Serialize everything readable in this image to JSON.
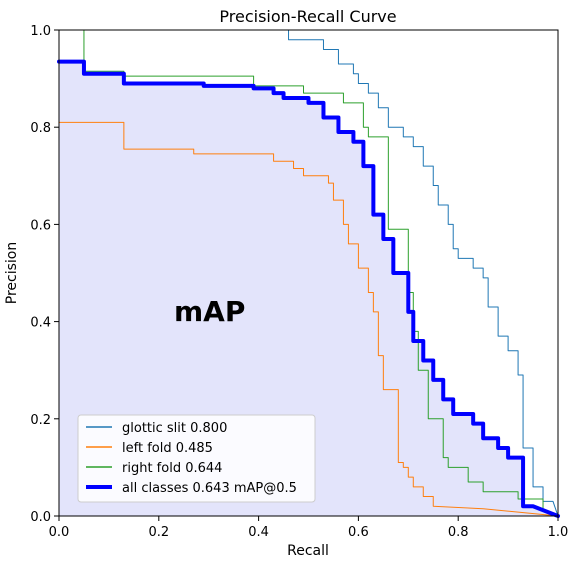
{
  "chart_data": {
    "type": "line",
    "title": "Precision-Recall Curve",
    "xlabel": "Recall",
    "ylabel": "Precision",
    "xlim": [
      0.0,
      1.0
    ],
    "ylim": [
      0.0,
      1.0
    ],
    "xticks": [
      "0.0",
      "0.2",
      "0.4",
      "0.6",
      "0.8",
      "1.0"
    ],
    "yticks": [
      "0.0",
      "0.2",
      "0.4",
      "0.6",
      "0.8",
      "1.0"
    ],
    "grid": false,
    "legend_position": "lower-left",
    "annotation": "mAP",
    "fill_under": "all classes 0.643 mAP@0.5",
    "series": [
      {
        "name": "glottic slit 0.800",
        "color": "#1f77b4",
        "linewidth": 1,
        "points": [
          [
            0.46,
            1.0
          ],
          [
            0.46,
            0.98
          ],
          [
            0.53,
            0.98
          ],
          [
            0.53,
            0.96
          ],
          [
            0.56,
            0.96
          ],
          [
            0.56,
            0.93
          ],
          [
            0.59,
            0.93
          ],
          [
            0.59,
            0.91
          ],
          [
            0.6,
            0.91
          ],
          [
            0.6,
            0.89
          ],
          [
            0.62,
            0.89
          ],
          [
            0.62,
            0.87
          ],
          [
            0.64,
            0.87
          ],
          [
            0.64,
            0.84
          ],
          [
            0.66,
            0.84
          ],
          [
            0.66,
            0.8
          ],
          [
            0.69,
            0.8
          ],
          [
            0.69,
            0.78
          ],
          [
            0.71,
            0.78
          ],
          [
            0.71,
            0.76
          ],
          [
            0.73,
            0.76
          ],
          [
            0.73,
            0.72
          ],
          [
            0.75,
            0.72
          ],
          [
            0.75,
            0.68
          ],
          [
            0.76,
            0.68
          ],
          [
            0.76,
            0.64
          ],
          [
            0.78,
            0.64
          ],
          [
            0.78,
            0.6
          ],
          [
            0.79,
            0.6
          ],
          [
            0.79,
            0.55
          ],
          [
            0.8,
            0.55
          ],
          [
            0.8,
            0.53
          ],
          [
            0.83,
            0.53
          ],
          [
            0.83,
            0.51
          ],
          [
            0.85,
            0.51
          ],
          [
            0.85,
            0.49
          ],
          [
            0.86,
            0.49
          ],
          [
            0.86,
            0.43
          ],
          [
            0.88,
            0.43
          ],
          [
            0.88,
            0.37
          ],
          [
            0.9,
            0.37
          ],
          [
            0.9,
            0.34
          ],
          [
            0.92,
            0.34
          ],
          [
            0.92,
            0.29
          ],
          [
            0.93,
            0.29
          ],
          [
            0.93,
            0.14
          ],
          [
            0.95,
            0.14
          ],
          [
            0.95,
            0.06
          ],
          [
            0.97,
            0.06
          ],
          [
            0.97,
            0.03
          ],
          [
            0.99,
            0.03
          ],
          [
            1.0,
            0.0
          ]
        ]
      },
      {
        "name": "left fold 0.485",
        "color": "#ff7f0e",
        "linewidth": 1,
        "points": [
          [
            0.0,
            0.81
          ],
          [
            0.13,
            0.81
          ],
          [
            0.13,
            0.755
          ],
          [
            0.27,
            0.755
          ],
          [
            0.27,
            0.745
          ],
          [
            0.43,
            0.745
          ],
          [
            0.43,
            0.73
          ],
          [
            0.47,
            0.73
          ],
          [
            0.47,
            0.715
          ],
          [
            0.49,
            0.715
          ],
          [
            0.49,
            0.7
          ],
          [
            0.54,
            0.7
          ],
          [
            0.54,
            0.685
          ],
          [
            0.55,
            0.685
          ],
          [
            0.55,
            0.65
          ],
          [
            0.57,
            0.65
          ],
          [
            0.57,
            0.6
          ],
          [
            0.58,
            0.6
          ],
          [
            0.58,
            0.56
          ],
          [
            0.6,
            0.56
          ],
          [
            0.6,
            0.51
          ],
          [
            0.62,
            0.51
          ],
          [
            0.62,
            0.46
          ],
          [
            0.63,
            0.46
          ],
          [
            0.63,
            0.42
          ],
          [
            0.64,
            0.42
          ],
          [
            0.64,
            0.33
          ],
          [
            0.65,
            0.33
          ],
          [
            0.65,
            0.26
          ],
          [
            0.68,
            0.26
          ],
          [
            0.68,
            0.11
          ],
          [
            0.69,
            0.11
          ],
          [
            0.69,
            0.1
          ],
          [
            0.7,
            0.1
          ],
          [
            0.7,
            0.08
          ],
          [
            0.71,
            0.08
          ],
          [
            0.71,
            0.06
          ],
          [
            0.73,
            0.06
          ],
          [
            0.73,
            0.04
          ],
          [
            0.75,
            0.04
          ],
          [
            0.75,
            0.02
          ],
          [
            0.85,
            0.015
          ],
          [
            1.0,
            0.0
          ]
        ]
      },
      {
        "name": "right fold 0.644",
        "color": "#2ca02c",
        "linewidth": 1,
        "points": [
          [
            0.05,
            1.0
          ],
          [
            0.05,
            0.915
          ],
          [
            0.13,
            0.915
          ],
          [
            0.13,
            0.905
          ],
          [
            0.39,
            0.905
          ],
          [
            0.39,
            0.885
          ],
          [
            0.49,
            0.885
          ],
          [
            0.49,
            0.87
          ],
          [
            0.57,
            0.87
          ],
          [
            0.57,
            0.85
          ],
          [
            0.61,
            0.85
          ],
          [
            0.61,
            0.8
          ],
          [
            0.62,
            0.8
          ],
          [
            0.62,
            0.78
          ],
          [
            0.66,
            0.78
          ],
          [
            0.66,
            0.59
          ],
          [
            0.7,
            0.59
          ],
          [
            0.7,
            0.46
          ],
          [
            0.71,
            0.46
          ],
          [
            0.71,
            0.38
          ],
          [
            0.72,
            0.38
          ],
          [
            0.72,
            0.3
          ],
          [
            0.74,
            0.3
          ],
          [
            0.74,
            0.2
          ],
          [
            0.77,
            0.2
          ],
          [
            0.77,
            0.12
          ],
          [
            0.78,
            0.12
          ],
          [
            0.78,
            0.1
          ],
          [
            0.82,
            0.1
          ],
          [
            0.82,
            0.07
          ],
          [
            0.85,
            0.07
          ],
          [
            0.85,
            0.05
          ],
          [
            0.92,
            0.05
          ],
          [
            0.92,
            0.035
          ],
          [
            0.97,
            0.035
          ],
          [
            0.97,
            0.015
          ],
          [
            1.0,
            0.0
          ]
        ]
      },
      {
        "name": "all classes 0.643 mAP@0.5",
        "color": "#0000ff",
        "linewidth": 4,
        "points": [
          [
            0.0,
            0.935
          ],
          [
            0.05,
            0.935
          ],
          [
            0.05,
            0.91
          ],
          [
            0.13,
            0.91
          ],
          [
            0.13,
            0.89
          ],
          [
            0.29,
            0.89
          ],
          [
            0.29,
            0.885
          ],
          [
            0.39,
            0.885
          ],
          [
            0.39,
            0.88
          ],
          [
            0.43,
            0.88
          ],
          [
            0.43,
            0.87
          ],
          [
            0.45,
            0.87
          ],
          [
            0.45,
            0.86
          ],
          [
            0.5,
            0.86
          ],
          [
            0.5,
            0.85
          ],
          [
            0.53,
            0.85
          ],
          [
            0.53,
            0.82
          ],
          [
            0.56,
            0.82
          ],
          [
            0.56,
            0.79
          ],
          [
            0.59,
            0.79
          ],
          [
            0.59,
            0.77
          ],
          [
            0.61,
            0.77
          ],
          [
            0.61,
            0.72
          ],
          [
            0.63,
            0.72
          ],
          [
            0.63,
            0.62
          ],
          [
            0.65,
            0.62
          ],
          [
            0.65,
            0.57
          ],
          [
            0.67,
            0.57
          ],
          [
            0.67,
            0.5
          ],
          [
            0.7,
            0.5
          ],
          [
            0.7,
            0.42
          ],
          [
            0.71,
            0.42
          ],
          [
            0.71,
            0.36
          ],
          [
            0.73,
            0.36
          ],
          [
            0.73,
            0.32
          ],
          [
            0.75,
            0.32
          ],
          [
            0.75,
            0.28
          ],
          [
            0.77,
            0.28
          ],
          [
            0.77,
            0.24
          ],
          [
            0.79,
            0.24
          ],
          [
            0.79,
            0.21
          ],
          [
            0.83,
            0.21
          ],
          [
            0.83,
            0.19
          ],
          [
            0.85,
            0.19
          ],
          [
            0.85,
            0.16
          ],
          [
            0.88,
            0.16
          ],
          [
            0.88,
            0.14
          ],
          [
            0.9,
            0.14
          ],
          [
            0.9,
            0.12
          ],
          [
            0.93,
            0.12
          ],
          [
            0.93,
            0.02
          ],
          [
            0.95,
            0.02
          ],
          [
            1.0,
            0.0
          ]
        ]
      }
    ]
  }
}
